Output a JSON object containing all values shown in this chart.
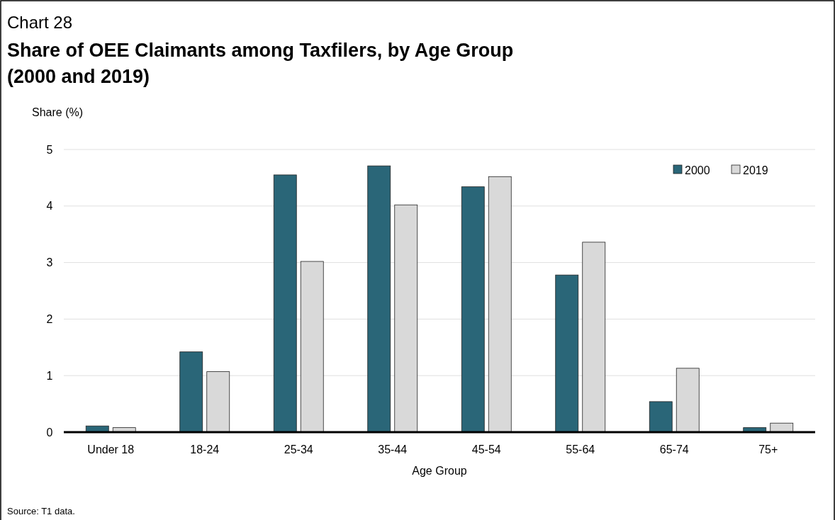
{
  "chart_data": {
    "type": "bar",
    "subtitle": "Chart 28",
    "title": "Share of OEE Claimants among Taxfilers, by Age Group (2000 and 2019)",
    "xlabel": "Age Group",
    "ylabel": "Share (%)",
    "annotations": [
      "Source: T1 data."
    ],
    "categories": [
      "Under 18",
      "18-24",
      "25-34",
      "35-44",
      "45-54",
      "55-64",
      "65-74",
      "75+"
    ],
    "series": [
      {
        "name": "2000",
        "color": "#2a6678",
        "values": [
          0.11,
          1.42,
          4.55,
          4.71,
          4.34,
          2.78,
          0.54,
          0.08
        ]
      },
      {
        "name": "2019",
        "color": "#d9d9d9",
        "values": [
          0.08,
          1.07,
          3.02,
          4.02,
          4.52,
          3.36,
          1.13,
          0.16
        ]
      }
    ],
    "ylim": [
      0,
      5
    ],
    "yticks": [
      0,
      1,
      2,
      3,
      4,
      5
    ],
    "grid": "y",
    "legend": "top right"
  }
}
